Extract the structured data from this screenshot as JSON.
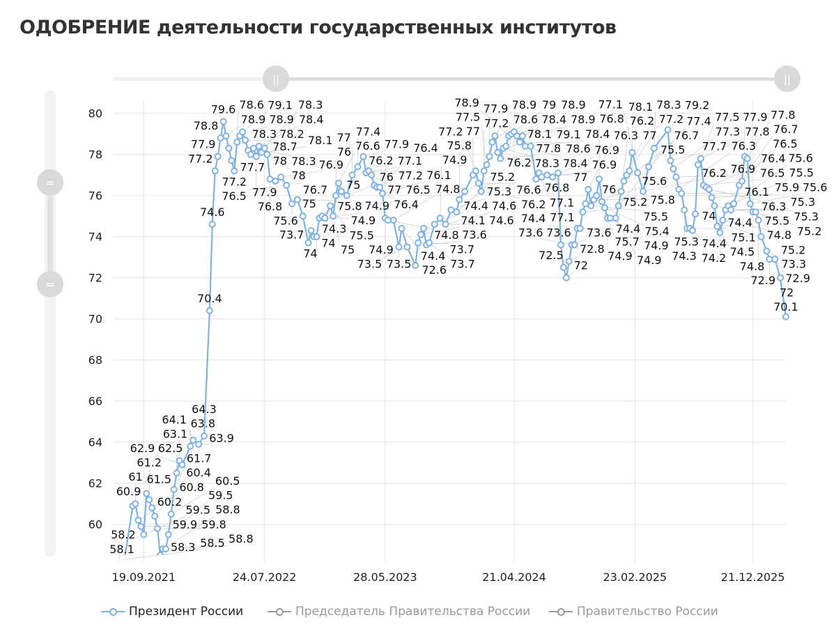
{
  "title": "ОДОБРЕНИЕ деятельности государственных институтов",
  "legend": [
    {
      "label": "Президент России",
      "active": true,
      "color": "#7eb2e4"
    },
    {
      "label": "Председатель Правительства России",
      "active": false,
      "color": "#999999"
    },
    {
      "label": "Правительство России",
      "active": false,
      "color": "#999999"
    }
  ],
  "chart_data": {
    "type": "line",
    "title": "ОДОБРЕНИЕ деятельности государственных институтов",
    "xlabel": "",
    "ylabel": "",
    "xlim": [
      "2021-07-04",
      "2026-03-15"
    ],
    "ylim": [
      58.5,
      80.6
    ],
    "x_tick_labels": [
      "19.09.2021",
      "24.07.2022",
      "28.05.2023",
      "21.04.2024",
      "23.02.2025",
      "21.12.2025"
    ],
    "x_tick_dates": [
      "2021-09-19",
      "2022-07-24",
      "2023-05-28",
      "2024-04-21",
      "2025-02-23",
      "2025-12-21"
    ],
    "y_ticks": [
      60,
      62,
      64,
      66,
      68,
      70,
      72,
      74,
      76,
      78,
      80
    ],
    "grid": true,
    "legend_position": "bottom",
    "data_labels": true,
    "series": [
      {
        "name": "Президент России",
        "color": "#7eb2e4",
        "points": [
          [
            "2021-07-04",
            58.1
          ],
          [
            "2021-07-18",
            58.2
          ],
          [
            "2021-08-01",
            58.3
          ],
          [
            "2021-08-22",
            60.9
          ],
          [
            "2021-08-29",
            61.0
          ],
          [
            "2021-09-05",
            60.2
          ],
          [
            "2021-09-12",
            59.9
          ],
          [
            "2021-09-19",
            59.5
          ],
          [
            "2021-09-26",
            61.5
          ],
          [
            "2021-10-03",
            61.2
          ],
          [
            "2021-10-10",
            60.8
          ],
          [
            "2021-10-17",
            60.4
          ],
          [
            "2021-10-24",
            59.8
          ],
          [
            "2021-10-31",
            58.5
          ],
          [
            "2021-11-07",
            58.8
          ],
          [
            "2021-11-14",
            58.8
          ],
          [
            "2021-11-21",
            59.5
          ],
          [
            "2021-11-28",
            60.5
          ],
          [
            "2021-12-05",
            61.7
          ],
          [
            "2021-12-12",
            62.5
          ],
          [
            "2021-12-19",
            63.1
          ],
          [
            "2021-12-26",
            62.9
          ],
          [
            "2022-01-16",
            63.8
          ],
          [
            "2022-01-23",
            64.1
          ],
          [
            "2022-02-06",
            63.9
          ],
          [
            "2022-02-20",
            64.3
          ],
          [
            "2022-03-06",
            70.4
          ],
          [
            "2022-03-13",
            74.6
          ],
          [
            "2022-03-20",
            77.2
          ],
          [
            "2022-03-27",
            77.9
          ],
          [
            "2022-04-03",
            78.8
          ],
          [
            "2022-04-10",
            79.6
          ],
          [
            "2022-04-17",
            78.9
          ],
          [
            "2022-04-24",
            78.3
          ],
          [
            "2022-05-01",
            77.7
          ],
          [
            "2022-05-08",
            77.2
          ],
          [
            "2022-05-15",
            78.6
          ],
          [
            "2022-05-22",
            78.9
          ],
          [
            "2022-05-29",
            79.1
          ],
          [
            "2022-06-05",
            78.7
          ],
          [
            "2022-06-12",
            78.2
          ],
          [
            "2022-06-19",
            78.0
          ],
          [
            "2022-06-26",
            78.3
          ],
          [
            "2022-07-03",
            77.9
          ],
          [
            "2022-07-10",
            78.4
          ],
          [
            "2022-07-17",
            78.1
          ],
          [
            "2022-07-24",
            78.3
          ],
          [
            "2022-07-31",
            78.0
          ],
          [
            "2022-08-07",
            76.8
          ],
          [
            "2022-08-21",
            76.7
          ],
          [
            "2022-09-04",
            76.9
          ],
          [
            "2022-09-18",
            76.5
          ],
          [
            "2022-10-02",
            75.6
          ],
          [
            "2022-10-16",
            75.8
          ],
          [
            "2022-10-30",
            75.0
          ],
          [
            "2022-11-13",
            73.7
          ],
          [
            "2022-11-20",
            74.3
          ],
          [
            "2022-11-27",
            74.0
          ],
          [
            "2022-12-04",
            74.0
          ],
          [
            "2022-12-11",
            74.9
          ],
          [
            "2022-12-18",
            75.0
          ],
          [
            "2022-12-25",
            74.9
          ],
          [
            "2023-01-08",
            75.5
          ],
          [
            "2023-01-15",
            75.0
          ],
          [
            "2023-01-22",
            76.0
          ],
          [
            "2023-01-29",
            76.6
          ],
          [
            "2023-02-05",
            76.2
          ],
          [
            "2023-02-19",
            76.0
          ],
          [
            "2023-03-05",
            77.0
          ],
          [
            "2023-03-19",
            77.4
          ],
          [
            "2023-04-02",
            77.9
          ],
          [
            "2023-04-09",
            77.1
          ],
          [
            "2023-04-16",
            77.2
          ],
          [
            "2023-04-23",
            77.0
          ],
          [
            "2023-04-30",
            76.5
          ],
          [
            "2023-05-07",
            76.4
          ],
          [
            "2023-05-14",
            76.4
          ],
          [
            "2023-05-21",
            76.1
          ],
          [
            "2023-05-28",
            74.9
          ],
          [
            "2023-06-04",
            74.8
          ],
          [
            "2023-06-18",
            74.8
          ],
          [
            "2023-07-02",
            73.5
          ],
          [
            "2023-07-09",
            74.4
          ],
          [
            "2023-07-23",
            73.5
          ],
          [
            "2023-08-13",
            72.6
          ],
          [
            "2023-08-20",
            73.7
          ],
          [
            "2023-08-27",
            74.1
          ],
          [
            "2023-09-03",
            74.4
          ],
          [
            "2023-09-10",
            73.6
          ],
          [
            "2023-09-17",
            73.7
          ],
          [
            "2023-10-01",
            74.6
          ],
          [
            "2023-10-15",
            74.9
          ],
          [
            "2023-10-29",
            74.6
          ],
          [
            "2023-11-12",
            75.3
          ],
          [
            "2023-11-26",
            75.2
          ],
          [
            "2023-12-03",
            75.8
          ],
          [
            "2023-12-17",
            76.2
          ],
          [
            "2024-01-07",
            77.0
          ],
          [
            "2024-01-14",
            77.2
          ],
          [
            "2024-01-21",
            76.6
          ],
          [
            "2024-01-28",
            76.2
          ],
          [
            "2024-02-04",
            77.2
          ],
          [
            "2024-02-11",
            77.5
          ],
          [
            "2024-02-18",
            77.9
          ],
          [
            "2024-02-25",
            78.6
          ],
          [
            "2024-03-03",
            78.9
          ],
          [
            "2024-03-10",
            78.1
          ],
          [
            "2024-03-17",
            77.8
          ],
          [
            "2024-03-24",
            78.3
          ],
          [
            "2024-03-31",
            78.4
          ],
          [
            "2024-04-07",
            78.9
          ],
          [
            "2024-04-14",
            79.0
          ],
          [
            "2024-04-21",
            79.1
          ],
          [
            "2024-04-28",
            78.9
          ],
          [
            "2024-05-05",
            78.6
          ],
          [
            "2024-05-12",
            78.9
          ],
          [
            "2024-05-19",
            78.4
          ],
          [
            "2024-06-02",
            78.4
          ],
          [
            "2024-06-16",
            76.8
          ],
          [
            "2024-06-23",
            77.1
          ],
          [
            "2024-06-30",
            76.9
          ],
          [
            "2024-07-14",
            77.0
          ],
          [
            "2024-07-28",
            76.9
          ],
          [
            "2024-08-11",
            77.1
          ],
          [
            "2024-08-18",
            73.6
          ],
          [
            "2024-08-25",
            72.5
          ],
          [
            "2024-09-01",
            72.0
          ],
          [
            "2024-09-08",
            72.8
          ],
          [
            "2024-09-15",
            73.6
          ],
          [
            "2024-09-22",
            73.6
          ],
          [
            "2024-09-29",
            74.4
          ],
          [
            "2024-10-06",
            74.4
          ],
          [
            "2024-10-13",
            75.2
          ],
          [
            "2024-10-20",
            75.6
          ],
          [
            "2024-10-27",
            76.3
          ],
          [
            "2024-11-03",
            75.5
          ],
          [
            "2024-11-10",
            75.8
          ],
          [
            "2024-11-17",
            76.0
          ],
          [
            "2024-11-24",
            76.8
          ],
          [
            "2024-12-01",
            75.7
          ],
          [
            "2024-12-08",
            75.4
          ],
          [
            "2024-12-15",
            74.9
          ],
          [
            "2024-12-22",
            74.9
          ],
          [
            "2025-01-05",
            74.9
          ],
          [
            "2025-01-12",
            75.5
          ],
          [
            "2025-01-19",
            76.2
          ],
          [
            "2025-01-26",
            76.7
          ],
          [
            "2025-02-02",
            77.0
          ],
          [
            "2025-02-09",
            77.2
          ],
          [
            "2025-02-16",
            78.1
          ],
          [
            "2025-03-02",
            77.1
          ],
          [
            "2025-03-16",
            76.2
          ],
          [
            "2025-03-30",
            77.4
          ],
          [
            "2025-04-13",
            78.3
          ],
          [
            "2025-05-18",
            79.2
          ],
          [
            "2025-05-25",
            77.7
          ],
          [
            "2025-06-01",
            77.3
          ],
          [
            "2025-06-08",
            76.9
          ],
          [
            "2025-06-15",
            76.3
          ],
          [
            "2025-06-22",
            76.1
          ],
          [
            "2025-06-29",
            75.3
          ],
          [
            "2025-07-06",
            74.4
          ],
          [
            "2025-07-13",
            74.4
          ],
          [
            "2025-07-20",
            74.3
          ],
          [
            "2025-07-27",
            75.1
          ],
          [
            "2025-08-03",
            77.5
          ],
          [
            "2025-08-10",
            77.8
          ],
          [
            "2025-08-17",
            76.5
          ],
          [
            "2025-08-24",
            76.4
          ],
          [
            "2025-08-31",
            76.3
          ],
          [
            "2025-09-07",
            75.9
          ],
          [
            "2025-09-14",
            75.5
          ],
          [
            "2025-09-21",
            74.5
          ],
          [
            "2025-09-28",
            74.2
          ],
          [
            "2025-10-05",
            74.8
          ],
          [
            "2025-10-12",
            75.3
          ],
          [
            "2025-10-19",
            75.5
          ],
          [
            "2025-10-26",
            75.3
          ],
          [
            "2025-11-02",
            75.6
          ],
          [
            "2025-11-16",
            76.5
          ],
          [
            "2025-11-23",
            76.7
          ],
          [
            "2025-11-30",
            77.9
          ],
          [
            "2025-12-07",
            77.8
          ],
          [
            "2025-12-14",
            75.6
          ],
          [
            "2025-12-21",
            75.2
          ],
          [
            "2025-12-28",
            75.2
          ],
          [
            "2026-01-04",
            74.8
          ],
          [
            "2026-01-11",
            74.0
          ],
          [
            "2026-01-25",
            73.3
          ],
          [
            "2026-02-01",
            72.9
          ],
          [
            "2026-02-15",
            72.9
          ],
          [
            "2026-03-01",
            72.0
          ],
          [
            "2026-03-15",
            70.1
          ]
        ]
      },
      {
        "name": "Председатель Правительства России",
        "color": "#999999",
        "visible": false,
        "points": []
      },
      {
        "name": "Правительство России",
        "color": "#999999",
        "visible": false,
        "points": []
      }
    ]
  }
}
